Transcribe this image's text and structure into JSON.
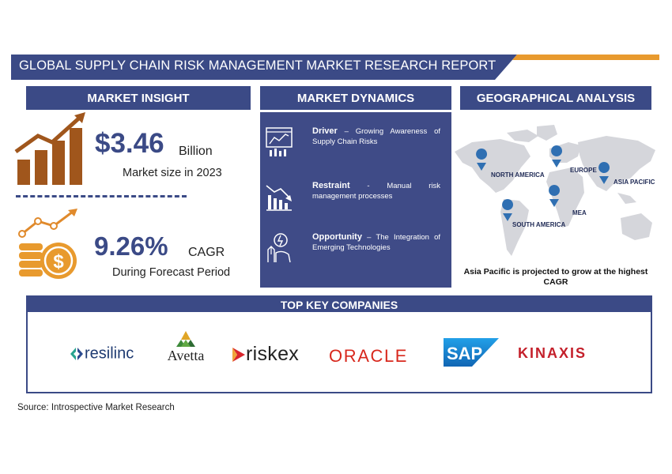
{
  "title": "GLOBAL SUPPLY CHAIN RISK MANAGEMENT MARKET RESEARCH REPORT",
  "sections": {
    "insight": "MARKET INSIGHT",
    "dynamics": "MARKET DYNAMICS",
    "geo": "GEOGRAPHICAL ANALYSIS",
    "companies": "TOP KEY COMPANIES"
  },
  "insight": {
    "market_value": "$3.46",
    "market_unit": "Billion",
    "market_label": "Market size in 2023",
    "cagr_value": "9.26%",
    "cagr_unit": "CAGR",
    "cagr_label": "During Forecast Period"
  },
  "dynamics": [
    {
      "title": "Driver",
      "sep": " – ",
      "text": "Growing Awareness of Supply Chain Risks",
      "icon": "chart-monitor-icon"
    },
    {
      "title": "Restraint",
      "sep": " - ",
      "text": "Manual risk management processes",
      "icon": "declining-bars-icon"
    },
    {
      "title": "Opportunity",
      "sep": " – ",
      "text": "The Integration of Emerging Technologies",
      "icon": "innovation-hand-icon"
    }
  ],
  "geo": {
    "regions": [
      "NORTH AMERICA",
      "EUROPE",
      "ASIA PACIFIC",
      "MEA",
      "SOUTH AMERICA"
    ],
    "note": "Asia Pacific is projected to grow at the highest CAGR"
  },
  "companies": {
    "resilinc": "resilinc",
    "avetta": "Avetta",
    "riskex": "riskex",
    "oracle": "ORACLE",
    "sap": "SAP",
    "kinaxis": "KINAXIS"
  },
  "source": "Source: Introspective Market Research",
  "colors": {
    "navy": "#3b4a86",
    "orange": "#d6862c",
    "brown": "#a0561c",
    "oracle_red": "#d8281d",
    "sap_blue": "#1b7fd4",
    "kinaxis_red": "#c4202b"
  }
}
